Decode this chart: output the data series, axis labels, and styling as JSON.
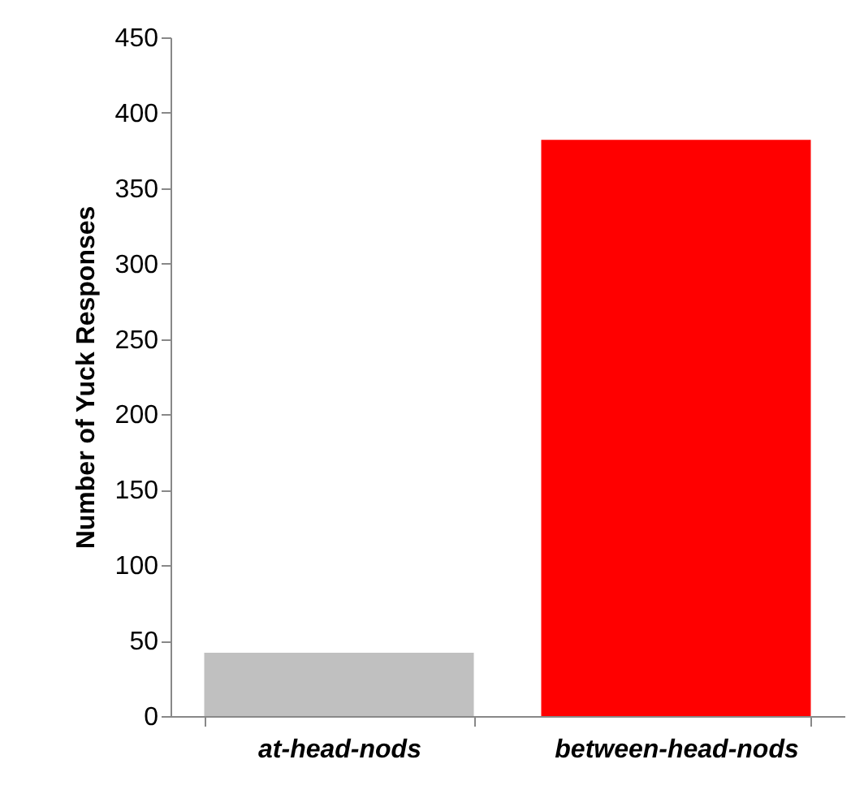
{
  "chart_data": {
    "type": "bar",
    "ylabel": "Number of Yuck Responses",
    "categories": [
      "at-head-nods",
      "between-head-nods"
    ],
    "values": [
      42,
      382
    ],
    "colors": [
      "#c0c0c0",
      "#ff0000"
    ],
    "ylim": [
      0,
      450
    ],
    "yticks": [
      0,
      50,
      100,
      150,
      200,
      250,
      300,
      350,
      400,
      450
    ],
    "grid": false
  }
}
